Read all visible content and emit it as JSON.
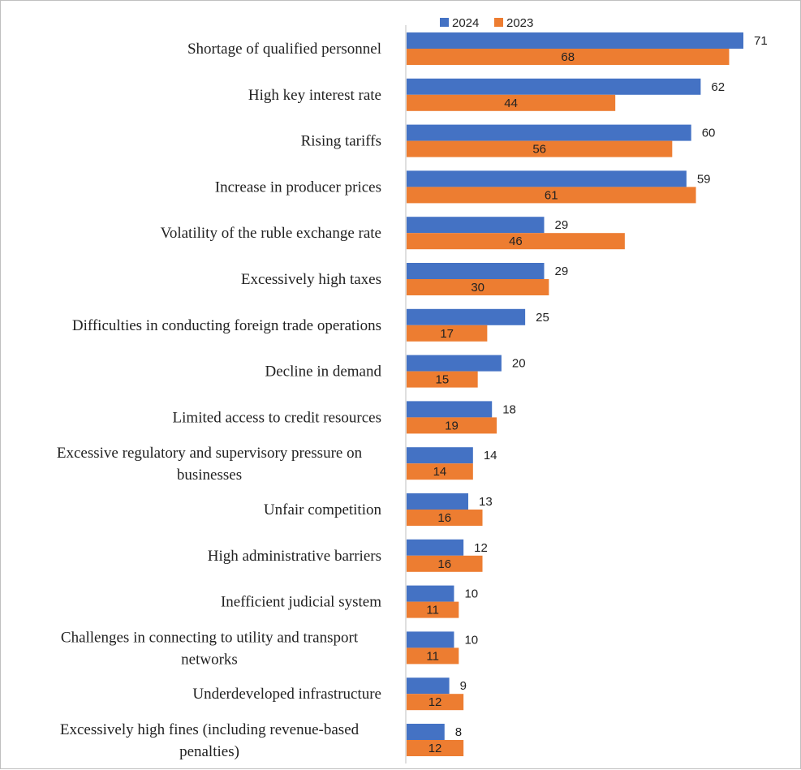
{
  "chart_data": {
    "type": "bar",
    "orientation": "horizontal",
    "title": "",
    "xlabel": "",
    "ylabel": "",
    "xlim": [
      0,
      100
    ],
    "grid": false,
    "legend": "top",
    "categories": [
      [
        "Shortage of qualified personnel"
      ],
      [
        "High key interest rate"
      ],
      [
        "Rising tariffs"
      ],
      [
        "Increase in producer prices"
      ],
      [
        "Volatility of the ruble exchange rate"
      ],
      [
        "Excessively high taxes"
      ],
      [
        "Difficulties in conducting foreign trade operations"
      ],
      [
        "Decline in demand"
      ],
      [
        "Limited access to credit resources"
      ],
      [
        "Excessive regulatory and supervisory pressure on",
        "businesses"
      ],
      [
        "Unfair competition"
      ],
      [
        "High administrative barriers"
      ],
      [
        "Inefficient judicial system"
      ],
      [
        "Challenges in connecting to utility and transport",
        "networks"
      ],
      [
        "Underdeveloped infrastructure"
      ],
      [
        "Excessively high fines (including revenue-based",
        "penalties)"
      ]
    ],
    "series": [
      {
        "name": "2024",
        "color": "#4472C4",
        "values": [
          71,
          62,
          60,
          59,
          29,
          29,
          25,
          20,
          18,
          14,
          13,
          12,
          10,
          10,
          9,
          8
        ]
      },
      {
        "name": "2023",
        "color": "#ED7D31",
        "values": [
          68,
          44,
          56,
          61,
          46,
          30,
          17,
          15,
          19,
          14,
          16,
          16,
          11,
          11,
          12,
          12
        ]
      }
    ]
  }
}
